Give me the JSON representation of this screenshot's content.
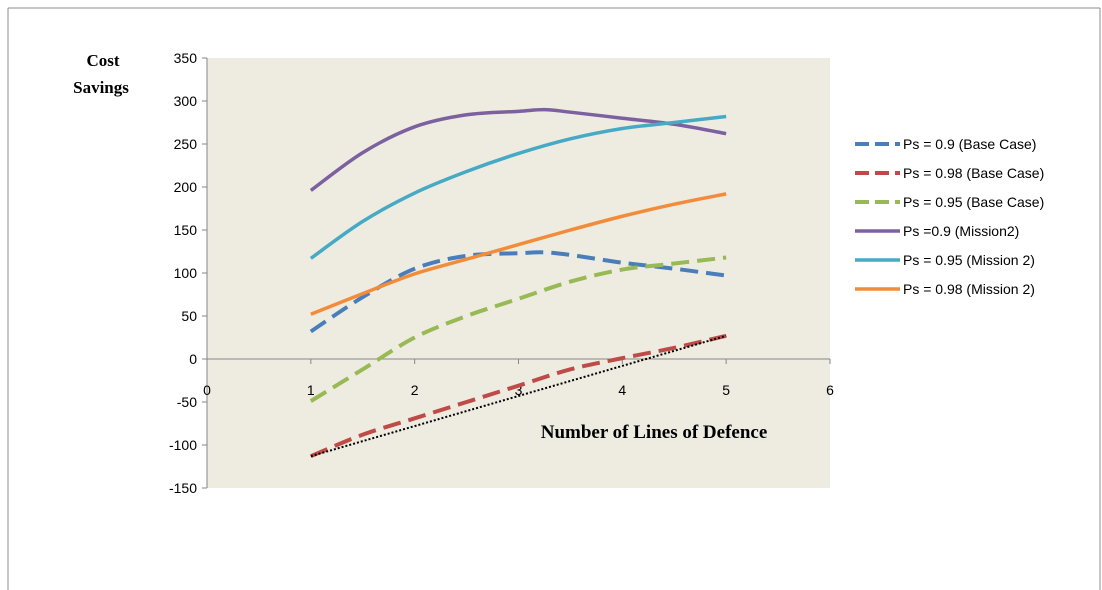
{
  "chart_data": {
    "type": "line",
    "title": "",
    "ylabel_lines": [
      "Cost",
      "Savings"
    ],
    "xlabel": "Number of Lines of Defence",
    "xlim": [
      0,
      6
    ],
    "ylim": [
      -150,
      350
    ],
    "xticks": [
      0,
      1,
      2,
      3,
      4,
      5,
      6
    ],
    "yticks": [
      350,
      300,
      250,
      200,
      150,
      100,
      50,
      0,
      -50,
      -100,
      -150
    ],
    "grid": false,
    "legend_position": "right",
    "plot_background": "#eeece1",
    "series": [
      {
        "name": "Ps = 0.9  (Base Case)",
        "color": "#4a7ebb",
        "dashed": true,
        "x": [
          1,
          1.5,
          2,
          2.5,
          3,
          3.25,
          3.5,
          4,
          4.5,
          5
        ],
        "values": [
          32,
          72,
          105,
          120,
          123,
          124,
          121,
          112,
          105,
          97
        ]
      },
      {
        "name": "Ps = 0.98  (Base Case)",
        "color": "#be4b48",
        "dashed": true,
        "x": [
          1,
          1.5,
          2,
          2.5,
          3,
          3.5,
          4,
          4.5,
          5
        ],
        "values": [
          -113,
          -88,
          -69,
          -50,
          -31,
          -12,
          1,
          13,
          27
        ]
      },
      {
        "name": "Ps = 0.95  (Base Case)",
        "color": "#98b954",
        "dashed": true,
        "x": [
          1,
          1.5,
          2,
          2.5,
          3,
          3.5,
          4,
          4.5,
          5
        ],
        "values": [
          -49,
          -12,
          25,
          50,
          70,
          90,
          104,
          111,
          118
        ]
      },
      {
        "name": "Ps  =0.9 (Mission2)",
        "color": "#7d60a0",
        "dashed": false,
        "x": [
          1,
          1.5,
          2,
          2.5,
          3,
          3.25,
          3.5,
          4,
          4.5,
          5
        ],
        "values": [
          196,
          240,
          270,
          284,
          288,
          290,
          287,
          280,
          273,
          262
        ]
      },
      {
        "name": "Ps = 0.95 (Mission 2)",
        "color": "#46aac5",
        "dashed": false,
        "x": [
          1,
          1.5,
          2,
          2.5,
          3,
          3.5,
          4,
          4.5,
          5
        ],
        "values": [
          117,
          160,
          193,
          218,
          239,
          256,
          268,
          275,
          282
        ]
      },
      {
        "name": "Ps = 0.98 (Mission 2)",
        "color": "#f28c3b",
        "dashed": false,
        "x": [
          1,
          1.5,
          2,
          2.5,
          3,
          3.5,
          4,
          4.5,
          5
        ],
        "values": [
          52,
          76,
          99,
          116,
          133,
          150,
          166,
          180,
          192
        ]
      }
    ],
    "trendline": {
      "color": "#000000",
      "style": "dotted",
      "x": [
        1,
        5
      ],
      "values": [
        -113,
        27
      ]
    }
  }
}
